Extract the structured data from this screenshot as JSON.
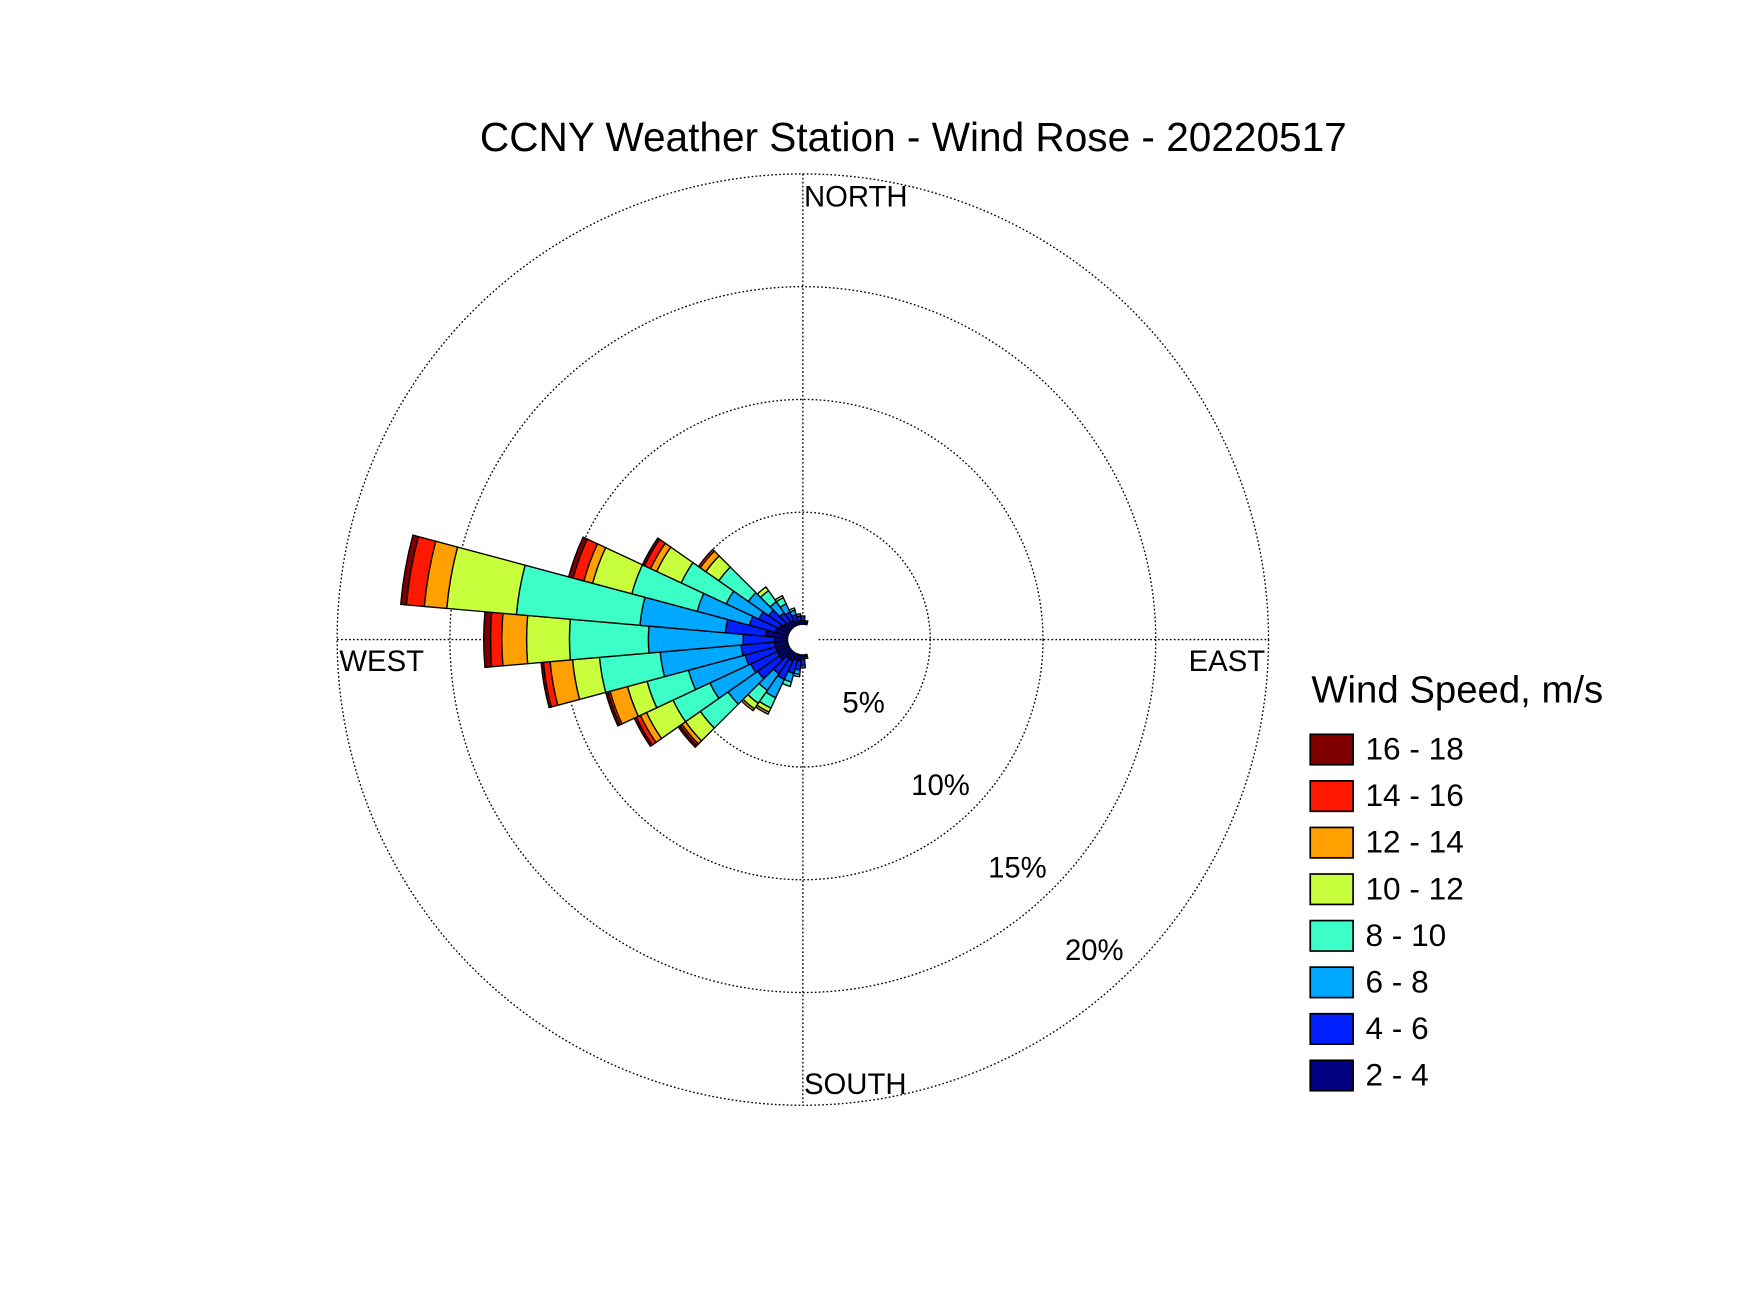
{
  "chart_data": {
    "type": "windrose",
    "title": "CCNY Weather Station - Wind Rose - 20220517",
    "direction_labels": {
      "north": "NORTH",
      "south": "SOUTH",
      "east": "EAST",
      "west": "WEST"
    },
    "legend_title": "Wind Speed, m/s",
    "legend": "right",
    "x": [
      0,
      10,
      20,
      30,
      40,
      50,
      60,
      70,
      80,
      90,
      100,
      110,
      120,
      130,
      140,
      150,
      160,
      170,
      180,
      190,
      200,
      210,
      220,
      230,
      240,
      250,
      260,
      270,
      280,
      290,
      300,
      310,
      320,
      330,
      340,
      350
    ],
    "rlim": [
      0,
      20
    ],
    "rticks": [
      {
        "value": 5,
        "label": "5%"
      },
      {
        "value": 10,
        "label": "10%"
      },
      {
        "value": 15,
        "label": "15%"
      },
      {
        "value": 20,
        "label": "20%"
      }
    ],
    "series": [
      {
        "name": "2 - 4",
        "color": "#000080",
        "values": [
          0.2,
          0.1,
          0,
          0,
          0,
          0,
          0,
          0,
          0,
          0,
          0,
          0,
          0,
          0,
          0,
          0,
          0,
          0.1,
          0.2,
          0.3,
          0.3,
          0.4,
          0.4,
          0.6,
          0.6,
          0.6,
          0.6,
          0.6,
          1.0,
          0.6,
          0.5,
          0.4,
          0.3,
          0.3,
          0.2,
          0.2
        ]
      },
      {
        "name": "4 - 6",
        "color": "#0020ff",
        "values": [
          0.2,
          0.1,
          0,
          0,
          0,
          0,
          0,
          0,
          0,
          0,
          0,
          0,
          0,
          0,
          0,
          0,
          0,
          0.1,
          0.3,
          0.4,
          0.6,
          0.9,
          0.8,
          1.2,
          1.3,
          1.4,
          1.5,
          1.4,
          1.8,
          1.2,
          1.0,
          0.8,
          0.5,
          0.4,
          0.3,
          0.2
        ]
      },
      {
        "name": "6 - 8",
        "color": "#00a8ff",
        "values": [
          0,
          0,
          0,
          0,
          0,
          0,
          0,
          0,
          0,
          0,
          0,
          0,
          0,
          0,
          0,
          0,
          0,
          0,
          0.1,
          0.2,
          0.4,
          0.9,
          0.9,
          1.6,
          2.0,
          2.6,
          3.6,
          4.2,
          3.8,
          2.4,
          1.6,
          1.1,
          0.6,
          0.4,
          0.2,
          0.1
        ]
      },
      {
        "name": "8 - 10",
        "color": "#3cffc8",
        "values": [
          0,
          0,
          0,
          0,
          0,
          0,
          0,
          0,
          0,
          0,
          0,
          0,
          0,
          0,
          0,
          0,
          0,
          0,
          0,
          0.1,
          0.2,
          0.5,
          0.7,
          1.5,
          1.8,
          1.9,
          2.7,
          3.5,
          5.5,
          3.0,
          2.2,
          1.6,
          0.6,
          0.3,
          0.1,
          0
        ]
      },
      {
        "name": "10 - 12",
        "color": "#c8ff3c",
        "values": [
          0,
          0,
          0,
          0,
          0,
          0,
          0,
          0,
          0,
          0,
          0,
          0,
          0,
          0,
          0,
          0,
          0,
          0,
          0,
          0,
          0,
          0.2,
          0.3,
          0.8,
          1.3,
          0.9,
          1.2,
          1.9,
          3.1,
          1.8,
          1.2,
          0.7,
          0.2,
          0.1,
          0,
          0
        ]
      },
      {
        "name": "12 - 14",
        "color": "#ffa000",
        "values": [
          0,
          0,
          0,
          0,
          0,
          0,
          0,
          0,
          0,
          0,
          0,
          0,
          0,
          0,
          0,
          0,
          0,
          0,
          0,
          0,
          0,
          0.1,
          0.1,
          0.2,
          0.3,
          0.8,
          1.0,
          1.1,
          1.0,
          0.4,
          0.3,
          0.3,
          0,
          0,
          0,
          0
        ]
      },
      {
        "name": "14 - 16",
        "color": "#ff1800",
        "values": [
          0,
          0,
          0,
          0,
          0,
          0,
          0,
          0,
          0,
          0,
          0,
          0,
          0,
          0,
          0,
          0,
          0,
          0,
          0,
          0,
          0,
          0,
          0,
          0.1,
          0.2,
          0.1,
          0.3,
          0.5,
          0.8,
          0.5,
          0.3,
          0.1,
          0,
          0,
          0,
          0
        ]
      },
      {
        "name": "16 - 18",
        "color": "#800000",
        "values": [
          0,
          0,
          0,
          0,
          0,
          0,
          0,
          0,
          0,
          0,
          0,
          0,
          0,
          0,
          0,
          0,
          0,
          0,
          0,
          0,
          0,
          0,
          0,
          0.1,
          0.1,
          0.1,
          0.1,
          0.3,
          0.25,
          0.2,
          0.1,
          0,
          0,
          0,
          0,
          0
        ]
      }
    ]
  }
}
